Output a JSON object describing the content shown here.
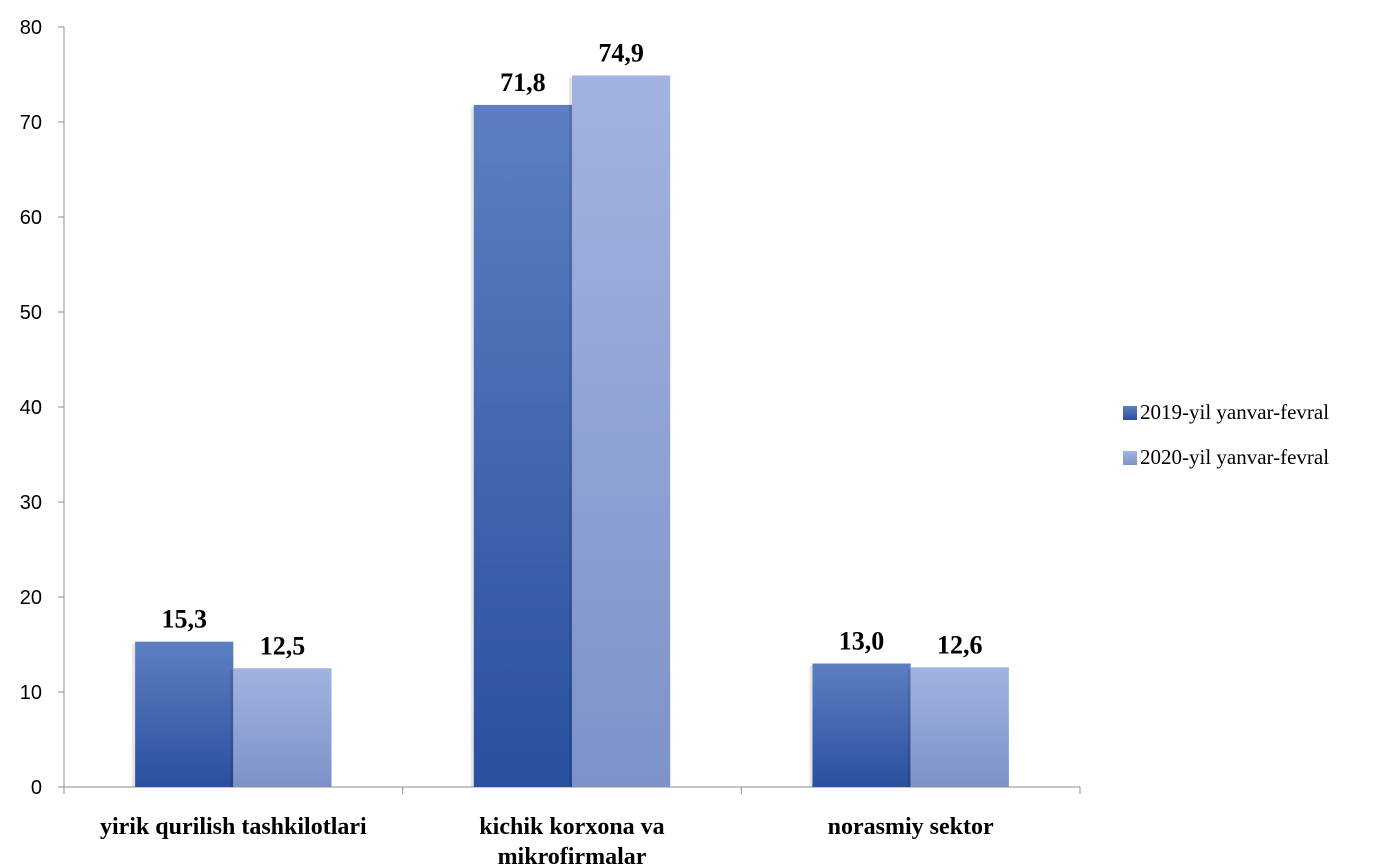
{
  "chart_data": {
    "type": "bar",
    "categories": [
      [
        "yirik qurilish tashkilotlari"
      ],
      [
        "kichik korxona va",
        "mikrofirmalar"
      ],
      [
        "norasmiy sektor"
      ]
    ],
    "series": [
      {
        "name": "2019-yil yanvar-fevral",
        "values": [
          15.3,
          71.8,
          13.0
        ],
        "labels": [
          "15,3",
          "71,8",
          "13,0"
        ],
        "color": "#3a62b0",
        "color_light": "#5d7fc2",
        "color_dark": "#2a4f9e"
      },
      {
        "name": "2020-yil yanvar-fevral",
        "values": [
          12.5,
          74.9,
          12.6
        ],
        "labels": [
          "12,5",
          "74,9",
          "12,6"
        ],
        "color": "#8fa3d6",
        "color_light": "#a2b3df",
        "color_dark": "#7d92c9"
      }
    ],
    "yticks": [
      "0",
      "10",
      "20",
      "30",
      "40",
      "50",
      "60",
      "70",
      "80"
    ],
    "ylim": [
      0,
      80
    ],
    "legend": "right",
    "grid": false
  }
}
